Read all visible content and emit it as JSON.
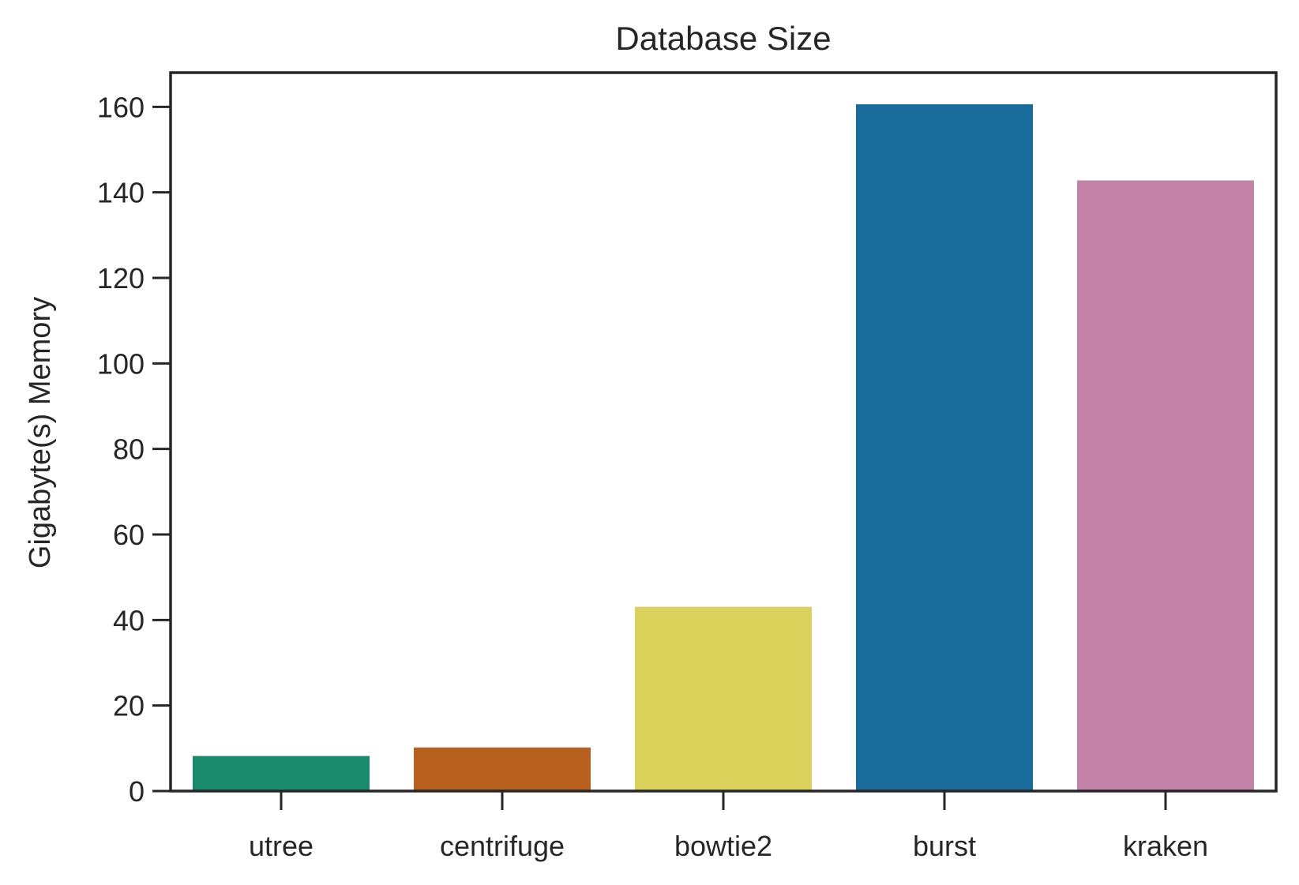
{
  "chart_data": {
    "type": "bar",
    "title": "Database Size",
    "xlabel": "",
    "ylabel": "Gigabyte(s) Memory",
    "categories": [
      "utree",
      "centrifuge",
      "bowtie2",
      "burst",
      "kraken"
    ],
    "values": [
      8.2,
      10.2,
      43.1,
      160.6,
      142.8
    ],
    "colors": [
      "#1a8a6c",
      "#b8611e",
      "#dad25a",
      "#196b9c",
      "#c283a6"
    ],
    "ylim": [
      0,
      168
    ],
    "yticks": [
      0,
      20,
      40,
      60,
      80,
      100,
      120,
      140,
      160
    ],
    "grid": false,
    "legend": "none"
  }
}
